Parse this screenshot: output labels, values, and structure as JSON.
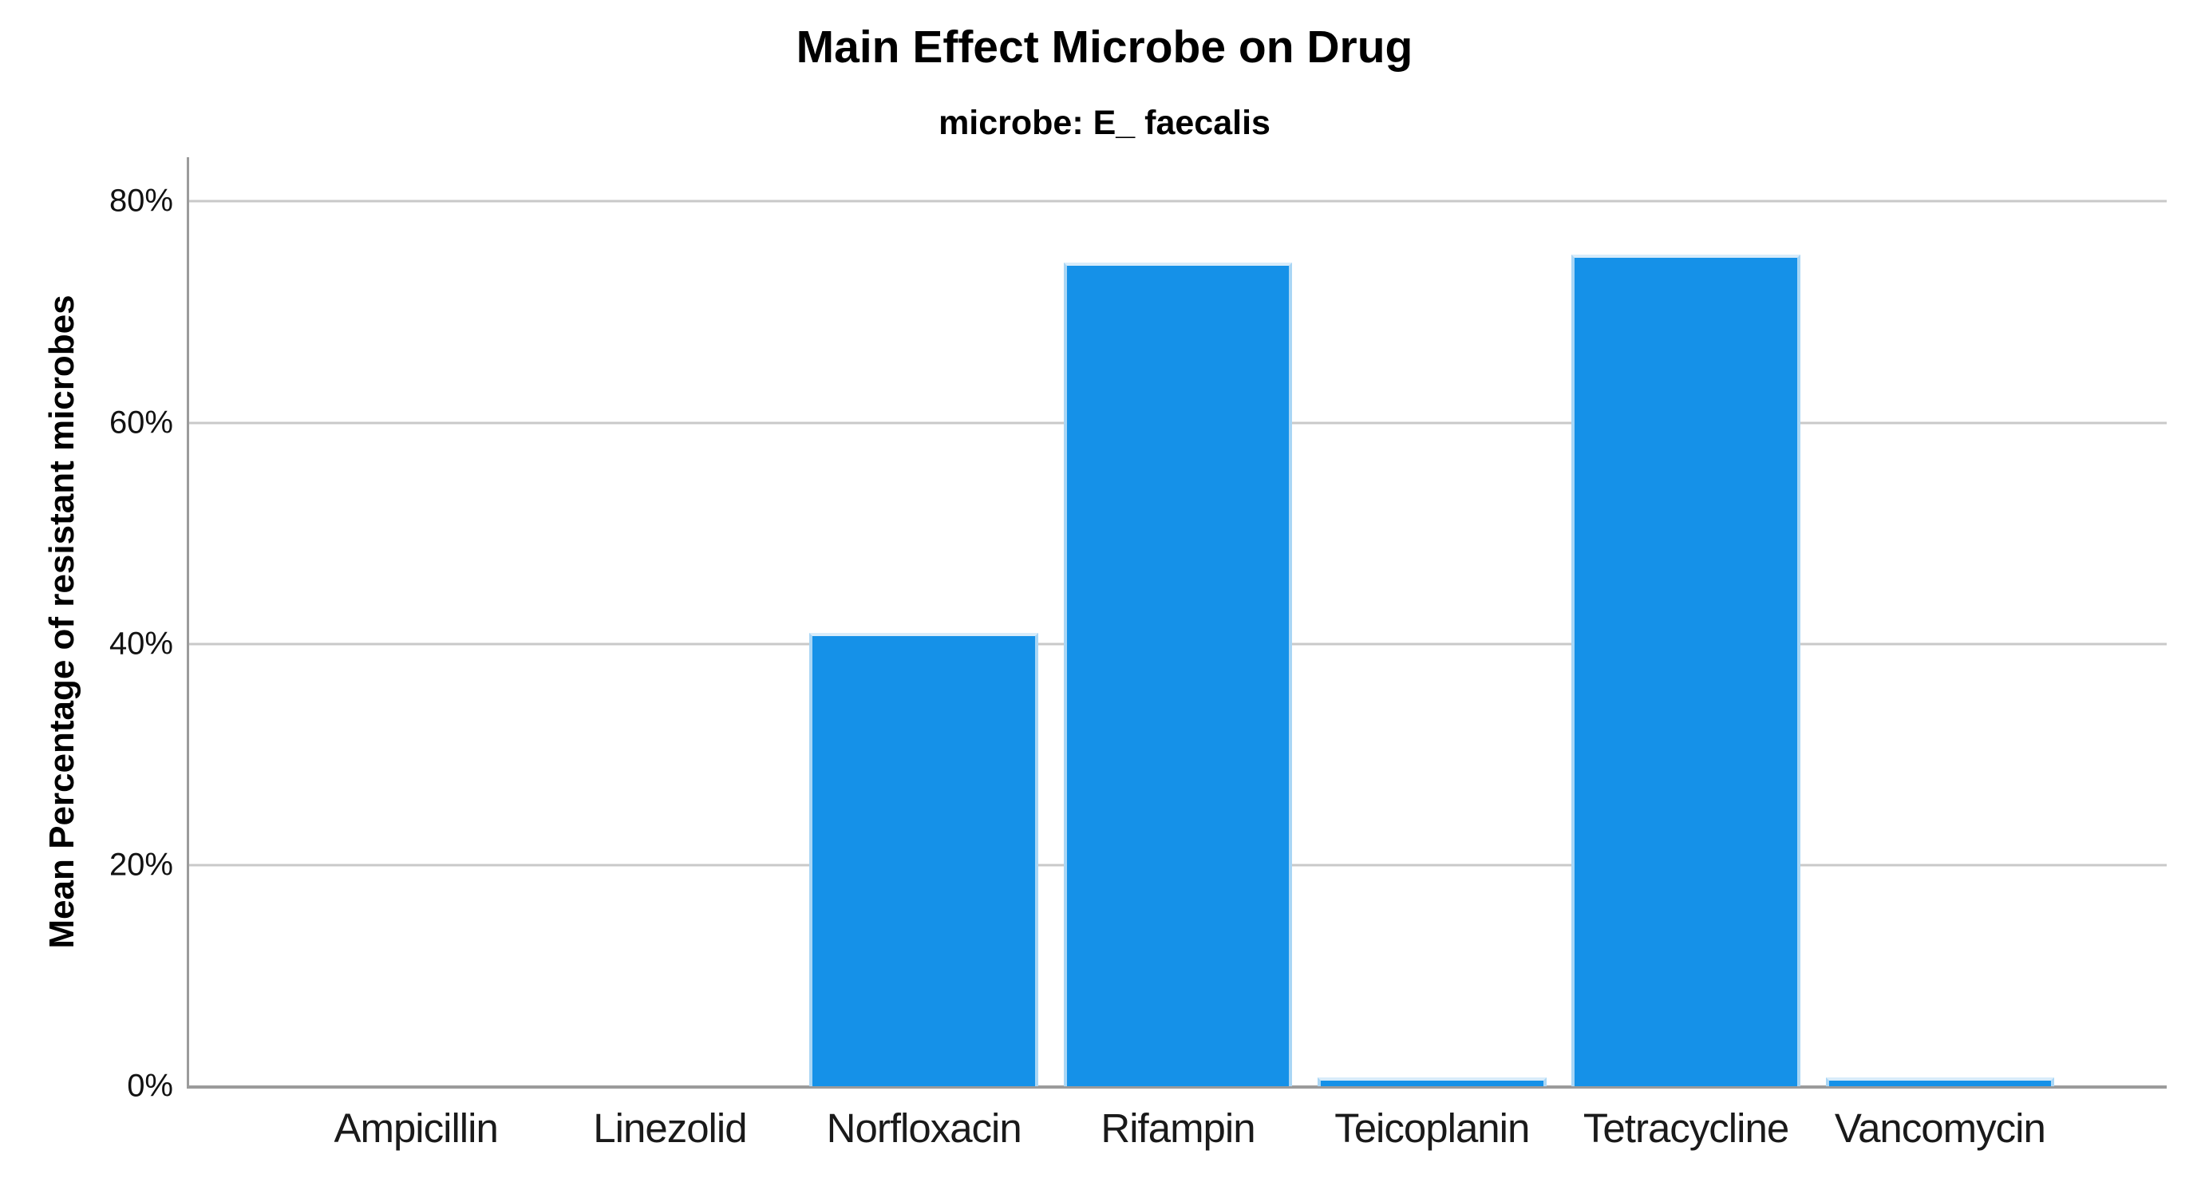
{
  "chart_data": {
    "type": "bar",
    "title": "Main Effect Microbe on Drug",
    "subtitle": "microbe: E_ faecalis",
    "ylabel": "Mean Percentage of resistant microbes",
    "xlabel": "",
    "categories": [
      "Ampicillin",
      "Linezolid",
      "Norfloxacin",
      "Rifampin",
      "Teicoplanin",
      "Tetracycline",
      "Vancomycin"
    ],
    "values": [
      0,
      0,
      41,
      74.5,
      0.8,
      75.2,
      0.8
    ],
    "unit": "%",
    "ylim": [
      0,
      84
    ],
    "yticks": [
      0,
      20,
      40,
      60,
      80
    ],
    "ytick_labels": [
      "0%",
      "20%",
      "40%",
      "60%",
      "80%"
    ],
    "grid": "horizontal-only",
    "legend": "none",
    "colors": {
      "bar_fill": "#1591e8",
      "bar_edge": "#a9d6f5",
      "bar_edge_top": "#d8ecfa",
      "gridline": "#c9c9c9",
      "axis_line": "#9b9b9b"
    }
  }
}
